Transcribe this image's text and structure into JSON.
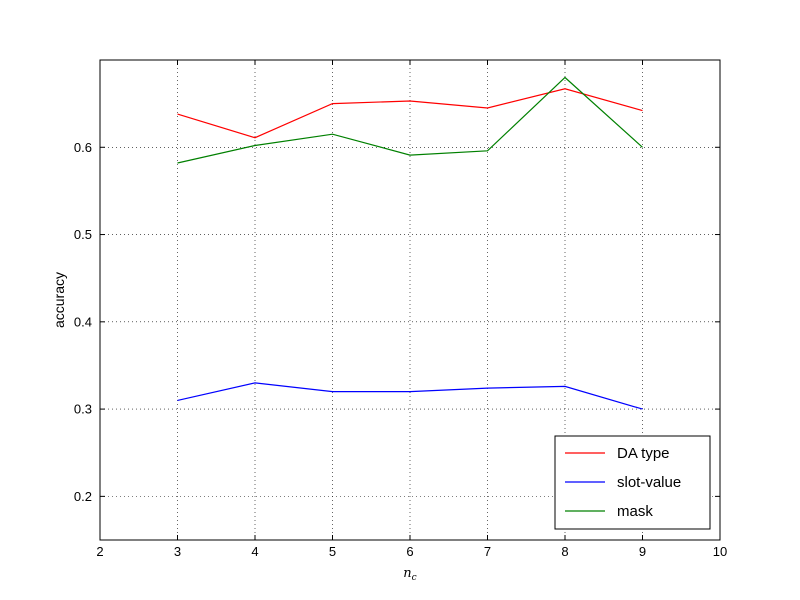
{
  "chart_data": {
    "type": "line",
    "title": "",
    "xlabel": "n_c",
    "ylabel": "accuracy",
    "xlim": [
      2,
      10
    ],
    "ylim": [
      0.15,
      0.7
    ],
    "xticks": [
      2,
      3,
      4,
      5,
      6,
      7,
      8,
      9,
      10
    ],
    "yticks": [
      0.2,
      0.3,
      0.4,
      0.5,
      0.6
    ],
    "grid": true,
    "legend_position": "bottom-right",
    "x": [
      3,
      4,
      5,
      6,
      7,
      8,
      9
    ],
    "series": [
      {
        "name": "DA type",
        "color": "#ff0000",
        "values": [
          0.638,
          0.611,
          0.65,
          0.653,
          0.645,
          0.667,
          0.642
        ]
      },
      {
        "name": "slot-value",
        "color": "#0000ff",
        "values": [
          0.31,
          0.33,
          0.32,
          0.32,
          0.324,
          0.326,
          0.3
        ]
      },
      {
        "name": "mask",
        "color": "#008000",
        "values": [
          0.582,
          0.602,
          0.615,
          0.591,
          0.596,
          0.68,
          0.6
        ]
      }
    ]
  }
}
